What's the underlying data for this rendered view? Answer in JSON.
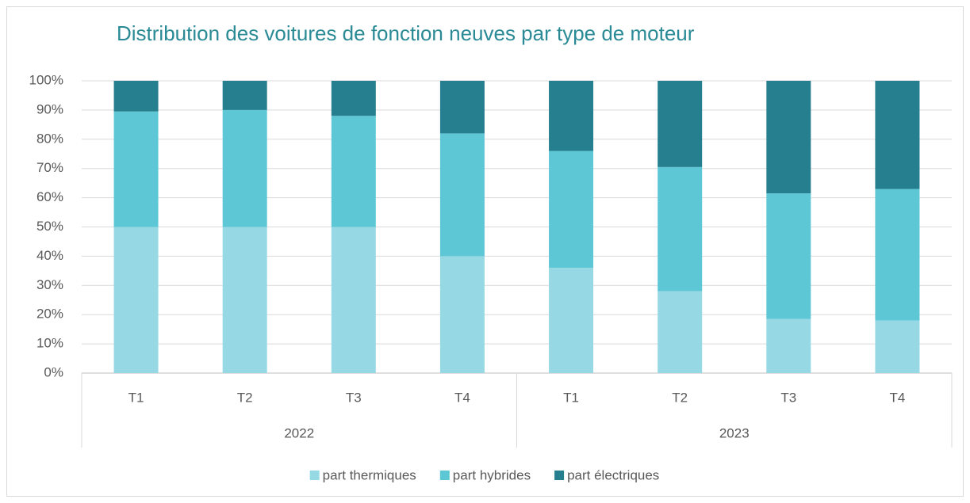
{
  "chart_data": {
    "type": "stacked_bar",
    "title": "Distribution des voitures de fonction neuves par type de moteur",
    "categories": [
      "T1",
      "T2",
      "T3",
      "T4",
      "T1",
      "T2",
      "T3",
      "T4"
    ],
    "category_groups": [
      "2022",
      "2023"
    ],
    "series": [
      {
        "name": "part thermiques",
        "color": "#96d9e4",
        "values": [
          50,
          50,
          50,
          40,
          36,
          28,
          18.5,
          18
        ]
      },
      {
        "name": "part hybrides",
        "color": "#5ec7d6",
        "values": [
          39.5,
          40,
          38,
          42,
          40,
          42.5,
          43,
          45
        ]
      },
      {
        "name": "part électriques",
        "color": "#267f8e",
        "values": [
          10.5,
          10,
          12,
          18,
          24,
          29.5,
          38.5,
          37
        ]
      }
    ],
    "ylim": [
      0,
      100
    ],
    "yticks": [
      {
        "value": 0,
        "label": "0%"
      },
      {
        "value": 10,
        "label": "10%"
      },
      {
        "value": 20,
        "label": "20%"
      },
      {
        "value": 30,
        "label": "30%"
      },
      {
        "value": 40,
        "label": "40%"
      },
      {
        "value": 50,
        "label": "50%"
      },
      {
        "value": 60,
        "label": "60%"
      },
      {
        "value": 70,
        "label": "70%"
      },
      {
        "value": 80,
        "label": "80%"
      },
      {
        "value": 90,
        "label": "90%"
      },
      {
        "value": 100,
        "label": "100%"
      }
    ],
    "grid": true,
    "legend": "bottom"
  }
}
